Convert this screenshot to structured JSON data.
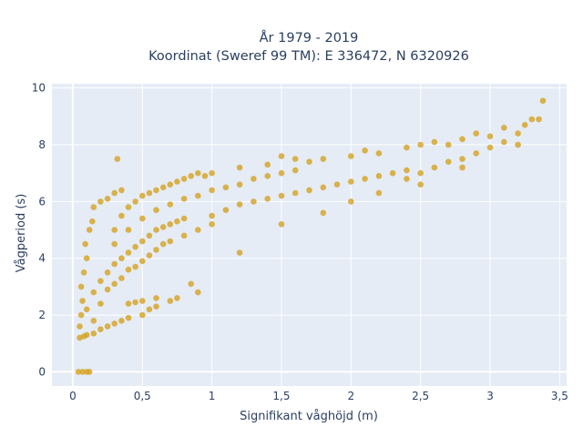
{
  "chart_data": {
    "type": "scatter",
    "title_lines": [
      "År 1979 - 2019",
      "Koordinat (Sweref 99 TM): E 336472, N 6320926"
    ],
    "xlabel": "Signifikant våghöjd (m)",
    "ylabel": "Vågperiod (s)",
    "xlim": [
      -0.15,
      3.55
    ],
    "ylim": [
      -0.5,
      10.15
    ],
    "x_ticks": [
      0,
      0.5,
      1,
      1.5,
      2,
      2.5,
      3,
      3.5
    ],
    "x_tick_labels": [
      "0",
      "0,5",
      "1",
      "1,5",
      "2",
      "2,5",
      "3",
      "3,5"
    ],
    "y_ticks": [
      0,
      2,
      4,
      6,
      8,
      10
    ],
    "y_tick_labels": [
      "0",
      "2",
      "4",
      "6",
      "8",
      "10"
    ],
    "grid": true,
    "background": "#e5ecf6",
    "marker_color": "#d4a321",
    "series": [
      {
        "values_note": "",
        "points": [
          [
            0.04,
            0.0
          ],
          [
            0.07,
            0.0
          ],
          [
            0.1,
            0.0
          ],
          [
            0.12,
            0.0
          ],
          [
            0.05,
            1.2
          ],
          [
            0.08,
            1.25
          ],
          [
            0.1,
            1.3
          ],
          [
            0.15,
            1.35
          ],
          [
            0.2,
            1.5
          ],
          [
            0.25,
            1.6
          ],
          [
            0.3,
            1.7
          ],
          [
            0.35,
            1.8
          ],
          [
            0.4,
            1.9
          ],
          [
            0.5,
            2.0
          ],
          [
            0.55,
            2.2
          ],
          [
            0.6,
            2.3
          ],
          [
            0.7,
            2.5
          ],
          [
            0.75,
            2.6
          ],
          [
            0.05,
            1.6
          ],
          [
            0.06,
            2.0
          ],
          [
            0.07,
            2.5
          ],
          [
            0.06,
            3.0
          ],
          [
            0.08,
            3.5
          ],
          [
            0.1,
            4.0
          ],
          [
            0.09,
            4.5
          ],
          [
            0.12,
            5.0
          ],
          [
            0.14,
            5.3
          ],
          [
            0.15,
            5.8
          ],
          [
            0.2,
            6.0
          ],
          [
            0.25,
            6.1
          ],
          [
            0.3,
            6.3
          ],
          [
            0.35,
            6.4
          ],
          [
            0.1,
            2.2
          ],
          [
            0.15,
            2.8
          ],
          [
            0.2,
            3.2
          ],
          [
            0.25,
            3.5
          ],
          [
            0.3,
            3.8
          ],
          [
            0.35,
            4.0
          ],
          [
            0.4,
            4.2
          ],
          [
            0.45,
            4.4
          ],
          [
            0.5,
            4.6
          ],
          [
            0.55,
            4.8
          ],
          [
            0.6,
            5.0
          ],
          [
            0.65,
            5.1
          ],
          [
            0.7,
            5.2
          ],
          [
            0.75,
            5.3
          ],
          [
            0.8,
            5.4
          ],
          [
            0.15,
            1.8
          ],
          [
            0.2,
            2.4
          ],
          [
            0.25,
            2.9
          ],
          [
            0.3,
            3.1
          ],
          [
            0.35,
            3.3
          ],
          [
            0.4,
            3.6
          ],
          [
            0.45,
            3.7
          ],
          [
            0.5,
            3.9
          ],
          [
            0.55,
            4.1
          ],
          [
            0.6,
            4.3
          ],
          [
            0.65,
            4.5
          ],
          [
            0.7,
            4.6
          ],
          [
            0.8,
            4.8
          ],
          [
            0.9,
            5.0
          ],
          [
            1.0,
            5.2
          ],
          [
            0.3,
            5.0
          ],
          [
            0.35,
            5.5
          ],
          [
            0.4,
            5.8
          ],
          [
            0.45,
            6.0
          ],
          [
            0.5,
            6.2
          ],
          [
            0.55,
            6.3
          ],
          [
            0.6,
            6.4
          ],
          [
            0.65,
            6.5
          ],
          [
            0.7,
            6.6
          ],
          [
            0.75,
            6.7
          ],
          [
            0.8,
            6.8
          ],
          [
            0.85,
            6.9
          ],
          [
            0.9,
            7.0
          ],
          [
            0.95,
            6.9
          ],
          [
            1.0,
            7.0
          ],
          [
            0.3,
            4.5
          ],
          [
            0.4,
            5.0
          ],
          [
            0.5,
            5.4
          ],
          [
            0.6,
            5.7
          ],
          [
            0.7,
            5.9
          ],
          [
            0.8,
            6.1
          ],
          [
            0.9,
            6.2
          ],
          [
            1.0,
            6.4
          ],
          [
            1.1,
            6.5
          ],
          [
            1.2,
            6.6
          ],
          [
            1.3,
            6.8
          ],
          [
            1.4,
            6.9
          ],
          [
            1.5,
            7.0
          ],
          [
            1.6,
            7.1
          ],
          [
            1.0,
            5.5
          ],
          [
            1.1,
            5.7
          ],
          [
            1.2,
            5.9
          ],
          [
            1.3,
            6.0
          ],
          [
            1.4,
            6.1
          ],
          [
            1.5,
            6.2
          ],
          [
            1.6,
            6.3
          ],
          [
            1.7,
            6.4
          ],
          [
            1.8,
            6.5
          ],
          [
            1.9,
            6.6
          ],
          [
            2.0,
            6.7
          ],
          [
            2.1,
            6.8
          ],
          [
            2.2,
            6.9
          ],
          [
            2.3,
            7.0
          ],
          [
            2.4,
            7.1
          ],
          [
            1.2,
            7.2
          ],
          [
            1.4,
            7.3
          ],
          [
            1.5,
            7.6
          ],
          [
            1.6,
            7.5
          ],
          [
            1.7,
            7.4
          ],
          [
            1.8,
            7.5
          ],
          [
            2.0,
            7.6
          ],
          [
            2.1,
            7.8
          ],
          [
            2.2,
            7.7
          ],
          [
            2.4,
            7.9
          ],
          [
            2.5,
            8.0
          ],
          [
            2.6,
            8.1
          ],
          [
            2.7,
            8.0
          ],
          [
            2.8,
            8.2
          ],
          [
            2.9,
            8.4
          ],
          [
            2.4,
            6.8
          ],
          [
            2.5,
            7.0
          ],
          [
            2.6,
            7.2
          ],
          [
            2.7,
            7.4
          ],
          [
            2.8,
            7.5
          ],
          [
            2.9,
            7.7
          ],
          [
            3.0,
            7.9
          ],
          [
            3.1,
            8.1
          ],
          [
            3.2,
            8.4
          ],
          [
            3.25,
            8.7
          ],
          [
            3.3,
            8.9
          ],
          [
            3.35,
            8.9
          ],
          [
            3.38,
            9.55
          ],
          [
            3.1,
            8.6
          ],
          [
            3.0,
            8.3
          ],
          [
            0.32,
            7.5
          ],
          [
            0.9,
            2.8
          ],
          [
            0.6,
            2.6
          ],
          [
            0.5,
            2.5
          ],
          [
            0.45,
            2.45
          ],
          [
            0.4,
            2.4
          ],
          [
            0.85,
            3.1
          ],
          [
            1.2,
            4.2
          ],
          [
            1.5,
            5.2
          ],
          [
            1.8,
            5.6
          ],
          [
            2.0,
            6.0
          ],
          [
            2.2,
            6.3
          ],
          [
            2.5,
            6.6
          ],
          [
            2.8,
            7.2
          ],
          [
            3.2,
            8.0
          ]
        ]
      }
    ]
  }
}
